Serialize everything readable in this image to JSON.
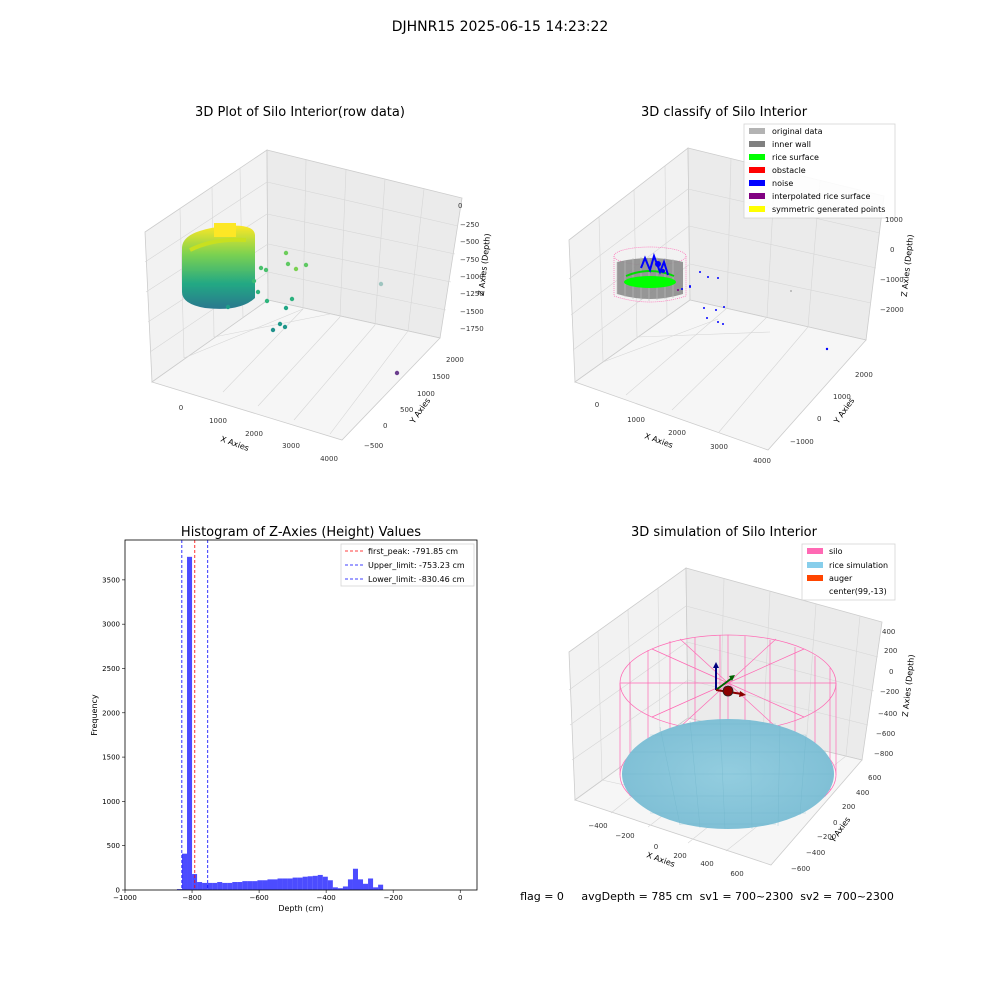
{
  "figure": {
    "suptitle": "DJHNR15 2025-06-15 14:23:22",
    "status_line": "flag = 0     avgDepth = 785 cm  sv1 = 700~2300  sv2 = 700~2300"
  },
  "chart_data": [
    {
      "type": "scatter",
      "projection": "3d",
      "title": "3D Plot of Silo Interior(row data)",
      "xlabel": "X Axies",
      "ylabel": "Y Axies",
      "zlabel": "Z Axies (Depth)",
      "xticks": [
        "0",
        "1000",
        "2000",
        "3000",
        "4000"
      ],
      "yticks": [
        "−500",
        "0",
        "500",
        "1000",
        "1500",
        "2000"
      ],
      "zticks": [
        "0",
        "−250",
        "−500",
        "−750",
        "−1000",
        "−1250",
        "−1500",
        "−1750"
      ],
      "grid": true,
      "colormap": "viridis",
      "description_series": "cylindrical wall point cloud near x≈0..500, y≈-500..500, z≈-1300..-300 plus scattered outliers"
    },
    {
      "type": "scatter",
      "projection": "3d",
      "title": "3D classify of Silo Interior",
      "xlabel": "X Axies",
      "ylabel": "Y Axies",
      "zlabel": "Z Axies (Depth)",
      "xticks": [
        "0",
        "1000",
        "2000",
        "3000",
        "4000"
      ],
      "yticks": [
        "−1000",
        "0",
        "1000",
        "2000"
      ],
      "zticks": [
        "1000",
        "0",
        "−1000",
        "−2000"
      ],
      "grid": true,
      "legend_position": "top-right",
      "legend": [
        {
          "label": "original data",
          "color": "#b3b3b3"
        },
        {
          "label": "inner wall",
          "color": "#808080"
        },
        {
          "label": "rice surface",
          "color": "#00ff00"
        },
        {
          "label": "obstacle",
          "color": "#ff0000"
        },
        {
          "label": "noise",
          "color": "#0000ff"
        },
        {
          "label": "interpolated rice surface",
          "color": "#800080"
        },
        {
          "label": "symmetric generated points",
          "color": "#ffff00"
        }
      ]
    },
    {
      "type": "bar",
      "title": "Histogram of Z-Axies (Height) Values",
      "xlabel": "Depth (cm)",
      "ylabel": "Frequency",
      "xlim": [
        -1000,
        50
      ],
      "ylim": [
        0,
        3950
      ],
      "xticks": [
        -1000,
        -800,
        -600,
        -400,
        -200,
        0
      ],
      "yticks": [
        0,
        500,
        1000,
        1500,
        2000,
        2500,
        3000,
        3500
      ],
      "bin_width": 15,
      "bin_start": -845,
      "values": [
        10,
        410,
        3760,
        180,
        90,
        80,
        80,
        80,
        90,
        80,
        80,
        90,
        90,
        100,
        100,
        100,
        110,
        110,
        120,
        120,
        130,
        130,
        130,
        140,
        140,
        150,
        155,
        160,
        170,
        150,
        110,
        30,
        20,
        40,
        120,
        240,
        120,
        70,
        130,
        30,
        60
      ],
      "bar_color": "#0000ff",
      "bar_alpha": 0.7,
      "lines": [
        {
          "label": "first_peak: -791.85 cm",
          "x": -791.85,
          "color": "#ff0000"
        },
        {
          "label": "Upper_limit: -753.23 cm",
          "x": -753.23,
          "color": "#0000ff"
        },
        {
          "label": "Lower_limit: -830.46 cm",
          "x": -830.46,
          "color": "#0000ff"
        }
      ],
      "legend_position": "top-right",
      "grid": false
    },
    {
      "type": "surface",
      "projection": "3d",
      "title": "3D simulation of Silo Interior",
      "xlabel": "X Axies",
      "ylabel": "Y Axies",
      "zlabel": "Z Axies (Depth)",
      "xticks": [
        "−400",
        "−200",
        "0",
        "200",
        "400",
        "600"
      ],
      "yticks": [
        "−600",
        "−400",
        "−200",
        "0",
        "200",
        "400",
        "600"
      ],
      "zticks": [
        "400",
        "200",
        "0",
        "−200",
        "−400",
        "−600",
        "−800"
      ],
      "grid": true,
      "legend_position": "top-right",
      "legend": [
        {
          "label": "silo",
          "color": "#ff69b4"
        },
        {
          "label": "rice simulation",
          "color": "#87ceeb"
        },
        {
          "label": "auger",
          "color": "#ff4500"
        },
        {
          "label": "center(99,-13)",
          "color": "#ffffff"
        }
      ]
    }
  ]
}
